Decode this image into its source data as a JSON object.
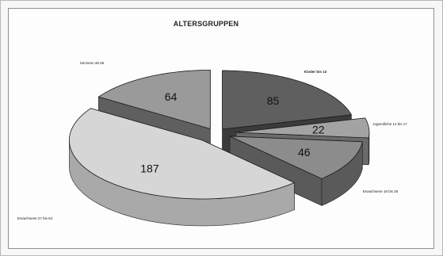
{
  "chart_data": {
    "type": "pie",
    "title": "ALTERSGRUPPEN",
    "categories": [
      "Kinder bis 13",
      "Jugendliche 14 bis 17",
      "Erwachsene 18 bis 26",
      "Erwachsene 27 bis 64",
      "Senioren ab 65"
    ],
    "values": [
      85,
      22,
      46,
      187,
      64
    ],
    "colors": {
      "Kinder bis 13": "#5f5f5f",
      "Jugendliche 14 bis 17": "#a3a3a3",
      "Erwachsene 18 bis 26": "#8c8c8c",
      "Erwachsene 27 bis 64": "#d6d6d6",
      "Senioren ab 65": "#9a9a9a"
    },
    "exploded": true,
    "style": "3d"
  }
}
